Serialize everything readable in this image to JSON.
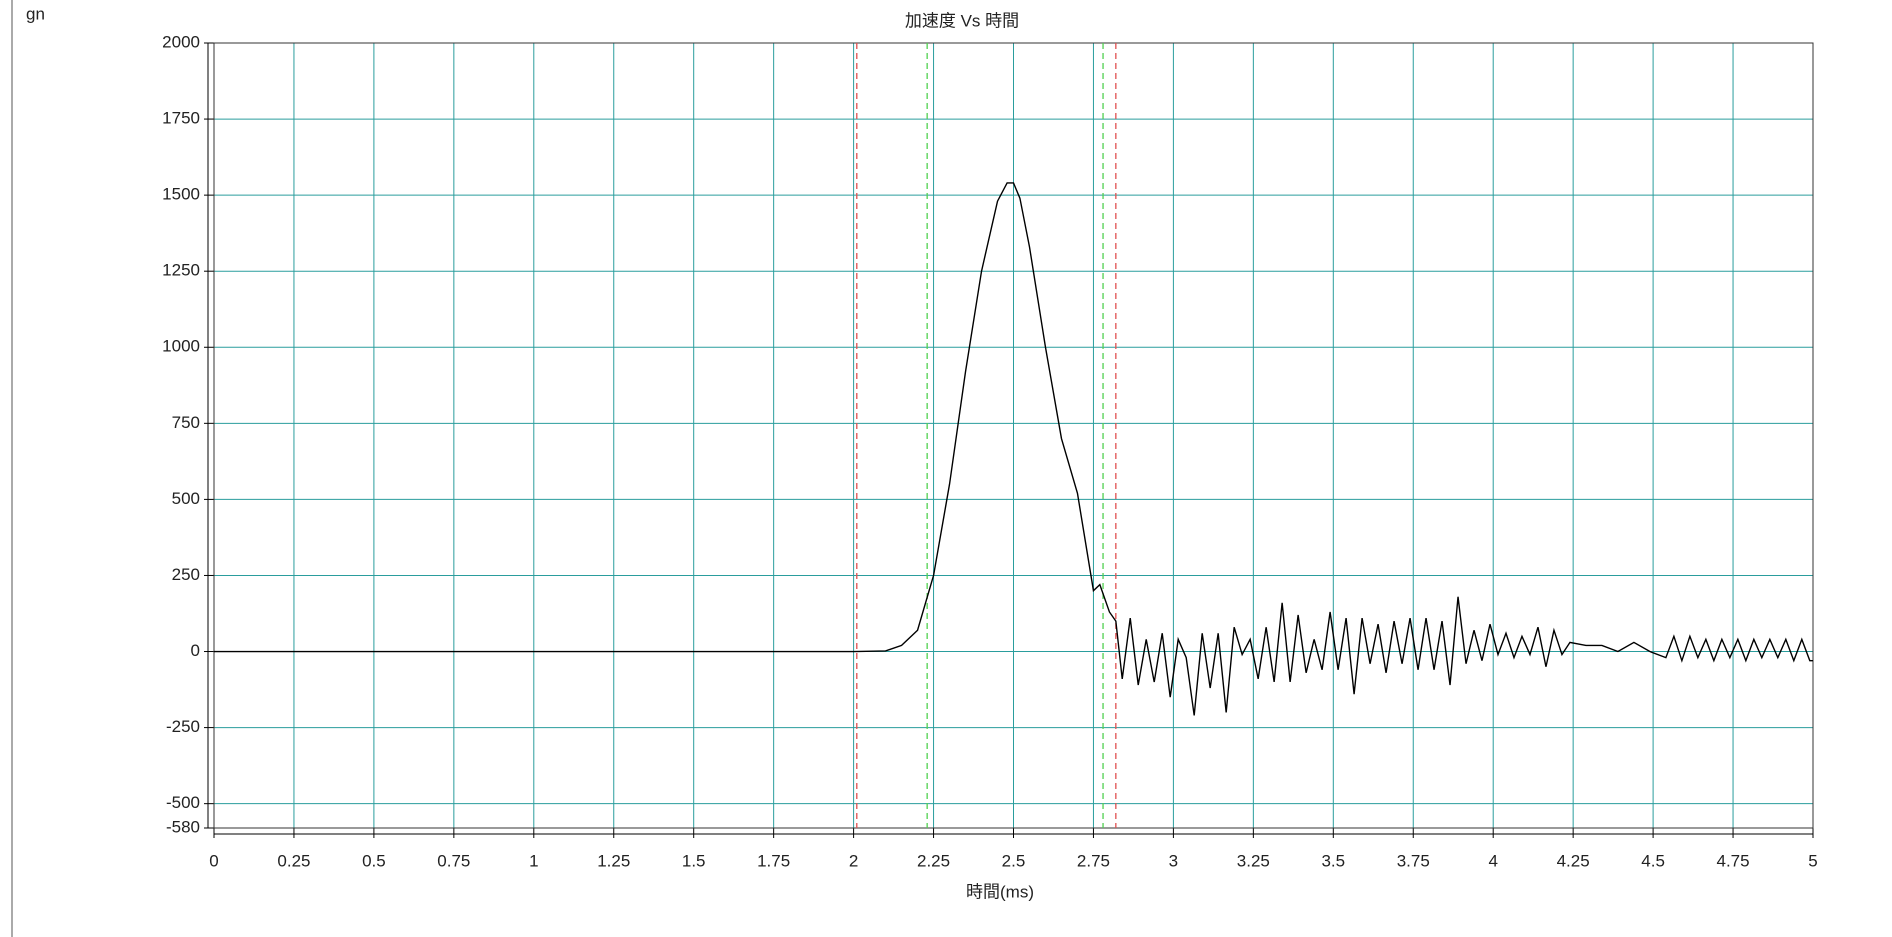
{
  "chart_data": {
    "type": "line",
    "title": "加速度 Vs 時間",
    "x_label": "時間(ms)",
    "y_label": "gn",
    "x": [
      0,
      1.0,
      2.0,
      2.1,
      2.15,
      2.2,
      2.25,
      2.3,
      2.35,
      2.4,
      2.45,
      2.48,
      2.5,
      2.52,
      2.55,
      2.6,
      2.65,
      2.7,
      2.75,
      2.77,
      2.8,
      2.82,
      2.84,
      2.865,
      2.89,
      2.915,
      2.94,
      2.965,
      2.99,
      3.015,
      3.04,
      3.065,
      3.09,
      3.115,
      3.14,
      3.165,
      3.19,
      3.215,
      3.24,
      3.265,
      3.29,
      3.315,
      3.34,
      3.365,
      3.39,
      3.415,
      3.44,
      3.465,
      3.49,
      3.515,
      3.54,
      3.565,
      3.59,
      3.615,
      3.64,
      3.665,
      3.69,
      3.715,
      3.74,
      3.765,
      3.79,
      3.815,
      3.84,
      3.865,
      3.89,
      3.915,
      3.94,
      3.965,
      3.99,
      4.015,
      4.04,
      4.065,
      4.09,
      4.115,
      4.14,
      4.165,
      4.19,
      4.215,
      4.24,
      4.29,
      4.34,
      4.39,
      4.44,
      4.49,
      4.54,
      4.565,
      4.59,
      4.615,
      4.64,
      4.665,
      4.69,
      4.715,
      4.74,
      4.765,
      4.79,
      4.815,
      4.84,
      4.865,
      4.89,
      4.915,
      4.94,
      4.965,
      4.99,
      5
    ],
    "series": [
      {
        "color": "#000000",
        "values": [
          0,
          0,
          0,
          2,
          20,
          70,
          250,
          550,
          920,
          1250,
          1480,
          1540,
          1540,
          1490,
          1330,
          1000,
          700,
          520,
          200,
          220,
          130,
          100,
          -90,
          110,
          -110,
          40,
          -100,
          60,
          -150,
          40,
          -20,
          -210,
          60,
          -120,
          60,
          -200,
          80,
          -10,
          40,
          -90,
          80,
          -100,
          160,
          -100,
          120,
          -70,
          40,
          -60,
          130,
          -60,
          110,
          -140,
          110,
          -40,
          90,
          -70,
          100,
          -40,
          110,
          -60,
          110,
          -60,
          100,
          -110,
          180,
          -40,
          70,
          -30,
          90,
          -10,
          60,
          -20,
          50,
          -10,
          80,
          -50,
          70,
          -10,
          30,
          20,
          20,
          0,
          30,
          0,
          -20,
          50,
          -30,
          50,
          -20,
          40,
          -30,
          40,
          -20,
          40,
          -30,
          40,
          -20,
          40,
          -20,
          40,
          -30,
          40,
          -30,
          -30
        ]
      }
    ],
    "markers": [
      {
        "value": 2.01,
        "color": "#e05050"
      },
      {
        "value": 2.23,
        "color": "#50d050"
      },
      {
        "value": 2.78,
        "color": "#50d050"
      },
      {
        "value": 2.82,
        "color": "#e05050"
      }
    ],
    "xlim": [
      0,
      5
    ],
    "xticks": [
      0,
      0.25,
      0.5,
      0.75,
      1,
      1.25,
      1.5,
      1.75,
      2,
      2.25,
      2.5,
      2.75,
      3,
      3.25,
      3.5,
      3.75,
      4,
      4.25,
      4.5,
      4.75,
      5
    ],
    "ylim": [
      -580,
      2000
    ],
    "yticks": [
      -580,
      -500,
      -250,
      0,
      250,
      500,
      750,
      1000,
      1250,
      1500,
      1750,
      2000
    ],
    "grid": true,
    "grid_color": "#2a9d9d"
  }
}
